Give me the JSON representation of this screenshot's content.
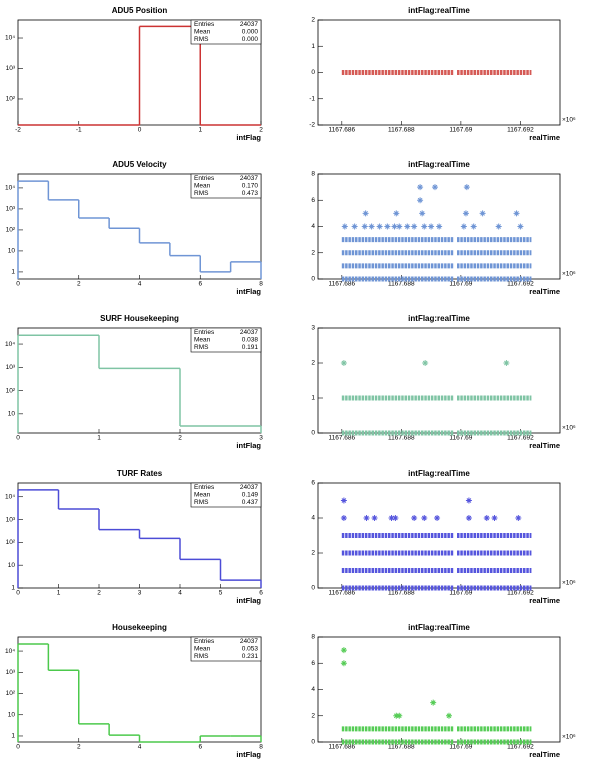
{
  "chart_data": [
    {
      "type": "histogram",
      "title": "ADU5 Position",
      "xlabel": "intFlag",
      "color": "#cc3333",
      "bins": [
        -2,
        -1,
        0,
        1,
        2
      ],
      "counts": [
        null,
        null,
        24037,
        null
      ],
      "xlim": [
        -2,
        2
      ],
      "xticks": [
        -2,
        -1,
        0,
        1,
        2
      ],
      "log": true,
      "ylim": [
        14,
        39000
      ],
      "yticks": [
        {
          "value": 100,
          "label": "10²"
        },
        {
          "value": 1000,
          "label": "10³"
        },
        {
          "value": 10000,
          "label": "10⁴"
        }
      ],
      "stats": [
        [
          "Entries",
          "24037"
        ],
        [
          "Mean",
          "0.000"
        ],
        [
          "RMS",
          "0.000"
        ]
      ]
    },
    {
      "type": "scatter",
      "title": "intFlag:realTime",
      "xlabel": "realTime",
      "x_exponent": "×10⁶",
      "color": "#d55a55",
      "xlim": [
        1167.6852,
        1167.69333
      ],
      "xticks": [
        1167.686,
        1167.688,
        1167.69,
        1167.692
      ],
      "ylim": [
        -2,
        2
      ],
      "yticks": [
        -2,
        -1,
        0,
        1,
        2
      ],
      "bands": [
        {
          "y": 0,
          "x": [
            1167.686,
            1167.68977
          ]
        },
        {
          "y": 0,
          "x": [
            1167.68987,
            1167.69237
          ]
        }
      ],
      "points": {
        "x": [],
        "y": []
      }
    },
    {
      "type": "histogram",
      "title": "ADU5 Velocity",
      "xlabel": "intFlag",
      "color": "#6f95d5",
      "bins": [
        0,
        1,
        2,
        3,
        4,
        5,
        6,
        7,
        8
      ],
      "counts": [
        21000,
        2700,
        370,
        120,
        24,
        6,
        1,
        3
      ],
      "xlim": [
        0,
        8
      ],
      "xticks": [
        0,
        2,
        4,
        6,
        8
      ],
      "log": true,
      "ylim": [
        0.46,
        46000
      ],
      "yticks": [
        1,
        10,
        {
          "value": 100,
          "label": "10²"
        },
        {
          "value": 1000,
          "label": "10³"
        },
        {
          "value": 10000,
          "label": "10⁴"
        }
      ],
      "stats": [
        [
          "Entries",
          "24037"
        ],
        [
          "Mean",
          "0.170"
        ],
        [
          "RMS",
          "0.473"
        ]
      ]
    },
    {
      "type": "scatter",
      "title": "intFlag:realTime",
      "xlabel": "realTime",
      "x_exponent": "×10⁶",
      "color": "#6f95d5",
      "xlim": [
        1167.6852,
        1167.69333
      ],
      "xticks": [
        1167.686,
        1167.688,
        1167.69,
        1167.692
      ],
      "ylim": [
        0,
        8
      ],
      "yticks": [
        0,
        2,
        4,
        6,
        8
      ],
      "bands": [
        {
          "y": 0,
          "x": [
            1167.686,
            1167.68977
          ]
        },
        {
          "y": 0,
          "x": [
            1167.68987,
            1167.69237
          ]
        },
        {
          "y": 1,
          "x": [
            1167.686,
            1167.68977
          ]
        },
        {
          "y": 1,
          "x": [
            1167.68987,
            1167.69237
          ]
        },
        {
          "y": 2,
          "x": [
            1167.686,
            1167.68977
          ]
        },
        {
          "y": 2,
          "x": [
            1167.68987,
            1167.69237
          ]
        },
        {
          "y": 3,
          "x": [
            1167.686,
            1167.68977
          ]
        },
        {
          "y": 3,
          "x": [
            1167.68987,
            1167.69237
          ]
        }
      ],
      "points": {
        "x": [
          1167.6861,
          1167.68643,
          1167.68677,
          1167.687,
          1167.68727,
          1167.68753,
          1167.68777,
          1167.68793,
          1167.6882,
          1167.68843,
          1167.68877,
          1167.689,
          1167.68927,
          1167.6901,
          1167.69043,
          1167.69127,
          1167.692,
          1167.6868,
          1167.68783,
          1167.6887,
          1167.69017,
          1167.69073,
          1167.69187,
          1167.68863,
          1167.68863,
          1167.68913,
          1167.6902
        ],
        "y": [
          4,
          4,
          4,
          4,
          4,
          4,
          4,
          4,
          4,
          4,
          4,
          4,
          4,
          4,
          4,
          4,
          4,
          5,
          5,
          5,
          5,
          5,
          5,
          6,
          7,
          7,
          7
        ]
      }
    },
    {
      "type": "histogram",
      "title": "SURF Housekeeping",
      "xlabel": "intFlag",
      "color": "#7fc4a4",
      "bins": [
        0,
        1,
        2,
        3
      ],
      "counts": [
        24000,
        900,
        3
      ],
      "xlim": [
        0,
        3
      ],
      "xticks": [
        0,
        1,
        2,
        3
      ],
      "log": true,
      "ylim": [
        1.5,
        49000
      ],
      "yticks": [
        10,
        {
          "value": 100,
          "label": "10²"
        },
        {
          "value": 1000,
          "label": "10³"
        },
        {
          "value": 10000,
          "label": "10⁴"
        }
      ],
      "stats": [
        [
          "Entries",
          "24037"
        ],
        [
          "Mean",
          "0.038"
        ],
        [
          "RMS",
          "0.191"
        ]
      ]
    },
    {
      "type": "scatter",
      "title": "intFlag:realTime",
      "xlabel": "realTime",
      "x_exponent": "×10⁶",
      "color": "#7fc4a4",
      "xlim": [
        1167.6852,
        1167.69333
      ],
      "xticks": [
        1167.686,
        1167.688,
        1167.69,
        1167.692
      ],
      "ylim": [
        0,
        3
      ],
      "yticks": [
        0,
        1,
        2,
        3
      ],
      "bands": [
        {
          "y": 0,
          "x": [
            1167.686,
            1167.68977
          ]
        },
        {
          "y": 0,
          "x": [
            1167.68987,
            1167.69237
          ]
        },
        {
          "y": 1,
          "x": [
            1167.686,
            1167.68977
          ]
        },
        {
          "y": 1,
          "x": [
            1167.68987,
            1167.69237
          ]
        }
      ],
      "points": {
        "x": [
          1167.68607,
          1167.6888,
          1167.69153
        ],
        "y": [
          2,
          2,
          2
        ]
      }
    },
    {
      "type": "histogram",
      "title": "TURF Rates",
      "xlabel": "intFlag",
      "color": "#4c4cd6",
      "bins": [
        0,
        1,
        2,
        3,
        4,
        5,
        6
      ],
      "counts": [
        20000,
        2900,
        360,
        150,
        18,
        2.2
      ],
      "xlim": [
        0,
        6
      ],
      "xticks": [
        0,
        1,
        2,
        3,
        4,
        5,
        6
      ],
      "log": true,
      "ylim": [
        1,
        40000
      ],
      "yticks": [
        1,
        10,
        {
          "value": 100,
          "label": "10²"
        },
        {
          "value": 1000,
          "label": "10³"
        },
        {
          "value": 10000,
          "label": "10⁴"
        }
      ],
      "stats": [
        [
          "Entries",
          "24037"
        ],
        [
          "Mean",
          "0.149"
        ],
        [
          "RMS",
          "0.437"
        ]
      ]
    },
    {
      "type": "scatter",
      "title": "intFlag:realTime",
      "xlabel": "realTime",
      "x_exponent": "×10⁶",
      "color": "#5555dd",
      "xlim": [
        1167.6852,
        1167.69333
      ],
      "xticks": [
        1167.686,
        1167.688,
        1167.69,
        1167.692
      ],
      "ylim": [
        0,
        6
      ],
      "yticks": [
        0,
        2,
        4,
        6
      ],
      "bands": [
        {
          "y": 0,
          "x": [
            1167.686,
            1167.68977
          ]
        },
        {
          "y": 0,
          "x": [
            1167.68987,
            1167.69237
          ]
        },
        {
          "y": 1,
          "x": [
            1167.686,
            1167.68977
          ]
        },
        {
          "y": 1,
          "x": [
            1167.68987,
            1167.69237
          ]
        },
        {
          "y": 2,
          "x": [
            1167.686,
            1167.68977
          ]
        },
        {
          "y": 2,
          "x": [
            1167.68987,
            1167.69237
          ]
        },
        {
          "y": 3,
          "x": [
            1167.686,
            1167.68977
          ]
        },
        {
          "y": 3,
          "x": [
            1167.68987,
            1167.69237
          ]
        }
      ],
      "points": {
        "x": [
          1167.68607,
          1167.68683,
          1167.6871,
          1167.68767,
          1167.6878,
          1167.68843,
          1167.68877,
          1167.6892,
          1167.69027,
          1167.69087,
          1167.69113,
          1167.69193,
          1167.68607,
          1167.69027
        ],
        "y": [
          4,
          4,
          4,
          4,
          4,
          4,
          4,
          4,
          4,
          4,
          4,
          4,
          5,
          5
        ]
      }
    },
    {
      "type": "histogram",
      "title": "Housekeeping",
      "xlabel": "intFlag",
      "color": "#4cc94c",
      "bins": [
        0,
        1,
        2,
        3,
        4,
        5,
        6,
        7,
        8
      ],
      "counts": [
        21500,
        1250,
        3.7,
        1.1,
        null,
        null,
        1,
        1
      ],
      "xlim": [
        0,
        8
      ],
      "xticks": [
        0,
        2,
        4,
        6,
        8
      ],
      "log": true,
      "ylim": [
        0.52,
        46000
      ],
      "yticks": [
        1,
        10,
        {
          "value": 100,
          "label": "10²"
        },
        {
          "value": 1000,
          "label": "10³"
        },
        {
          "value": 10000,
          "label": "10⁴"
        }
      ],
      "stats": [
        [
          "Entries",
          "24037"
        ],
        [
          "Mean",
          "0.053"
        ],
        [
          "RMS",
          "0.231"
        ]
      ]
    },
    {
      "type": "scatter",
      "title": "intFlag:realTime",
      "xlabel": "realTime",
      "x_exponent": "×10⁶",
      "color": "#55cc55",
      "xlim": [
        1167.6852,
        1167.69333
      ],
      "xticks": [
        1167.686,
        1167.688,
        1167.69,
        1167.692
      ],
      "ylim": [
        0,
        8
      ],
      "yticks": [
        0,
        2,
        4,
        6,
        8
      ],
      "bands": [
        {
          "y": 0,
          "x": [
            1167.686,
            1167.68977
          ]
        },
        {
          "y": 0,
          "x": [
            1167.68987,
            1167.69237
          ]
        },
        {
          "y": 1,
          "x": [
            1167.686,
            1167.68977
          ]
        },
        {
          "y": 1,
          "x": [
            1167.68987,
            1167.69237
          ]
        }
      ],
      "points": {
        "x": [
          1167.68783,
          1167.68793,
          1167.6896,
          1167.68907,
          1167.68607,
          1167.68607
        ],
        "y": [
          2,
          2,
          2,
          3,
          6,
          7
        ]
      }
    }
  ]
}
